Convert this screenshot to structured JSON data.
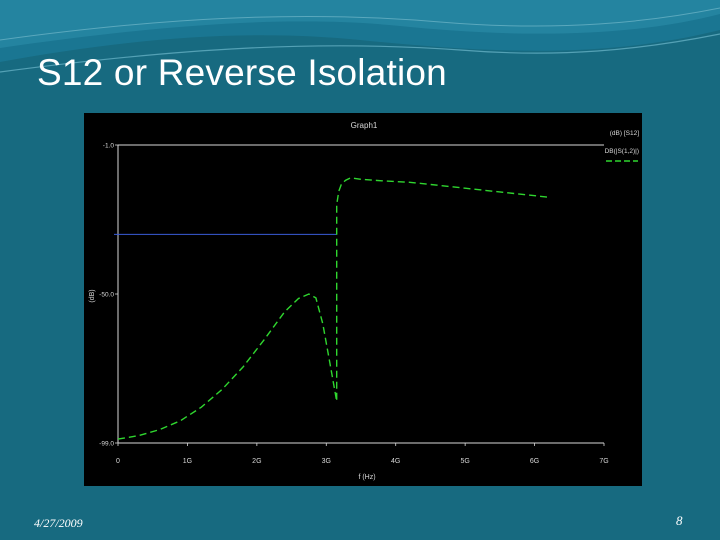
{
  "slide": {
    "title": "S12 or Reverse Isolation",
    "date": "4/27/2009",
    "page_number": "8"
  },
  "colors": {
    "background": "#176a80",
    "wave": "#2a8aa6",
    "plot_bg": "#000000",
    "curve": "#2fd62f",
    "marker": "#3a5bd8",
    "axis": "#d9d9d9",
    "text": "#ffffff"
  },
  "chart_data": {
    "type": "line",
    "title": "Graph1",
    "xlabel": "f (Hz)",
    "ylabel": "(dB)",
    "xlim": [
      0,
      7
    ],
    "ylim": [
      -1,
      0
    ],
    "x_ticks": [
      {
        "value": 0,
        "label": "0"
      },
      {
        "value": 1,
        "label": "1G"
      },
      {
        "value": 2,
        "label": "2G"
      },
      {
        "value": 3,
        "label": "3G"
      },
      {
        "value": 4,
        "label": "4G"
      },
      {
        "value": 5,
        "label": "5G"
      },
      {
        "value": 6,
        "label": "6G"
      },
      {
        "value": 7,
        "label": "7G"
      }
    ],
    "y_ticks": [
      {
        "value": 0,
        "label": "-1.0"
      },
      {
        "value": -0.5,
        "label": "-50.0"
      },
      {
        "value": -1,
        "label": "-99.0"
      }
    ],
    "legend": {
      "placement": "top-right",
      "header": "(dB) [S12]",
      "entries": [
        "DB(|S(1,2)|)"
      ]
    },
    "marker_line": {
      "y": -0.3,
      "x_end": 3.15
    },
    "grid": false,
    "series": [
      {
        "x": [
          0,
          0.3,
          0.6,
          0.9,
          1.2,
          1.5,
          1.8,
          2.1,
          2.4,
          2.6,
          2.75,
          2.85,
          2.95,
          3.05,
          3.15,
          3.15,
          3.18,
          3.22,
          3.28,
          3.35,
          3.5,
          3.8,
          4.2,
          4.6,
          5.0,
          5.4,
          5.8,
          6.2
        ],
        "y": [
          -0.987,
          -0.975,
          -0.955,
          -0.925,
          -0.88,
          -0.82,
          -0.745,
          -0.655,
          -0.56,
          -0.515,
          -0.5,
          -0.513,
          -0.6,
          -0.73,
          -0.86,
          -0.2,
          -0.155,
          -0.13,
          -0.118,
          -0.11,
          -0.115,
          -0.12,
          -0.125,
          -0.135,
          -0.145,
          -0.155,
          -0.165,
          -0.175
        ]
      }
    ]
  }
}
